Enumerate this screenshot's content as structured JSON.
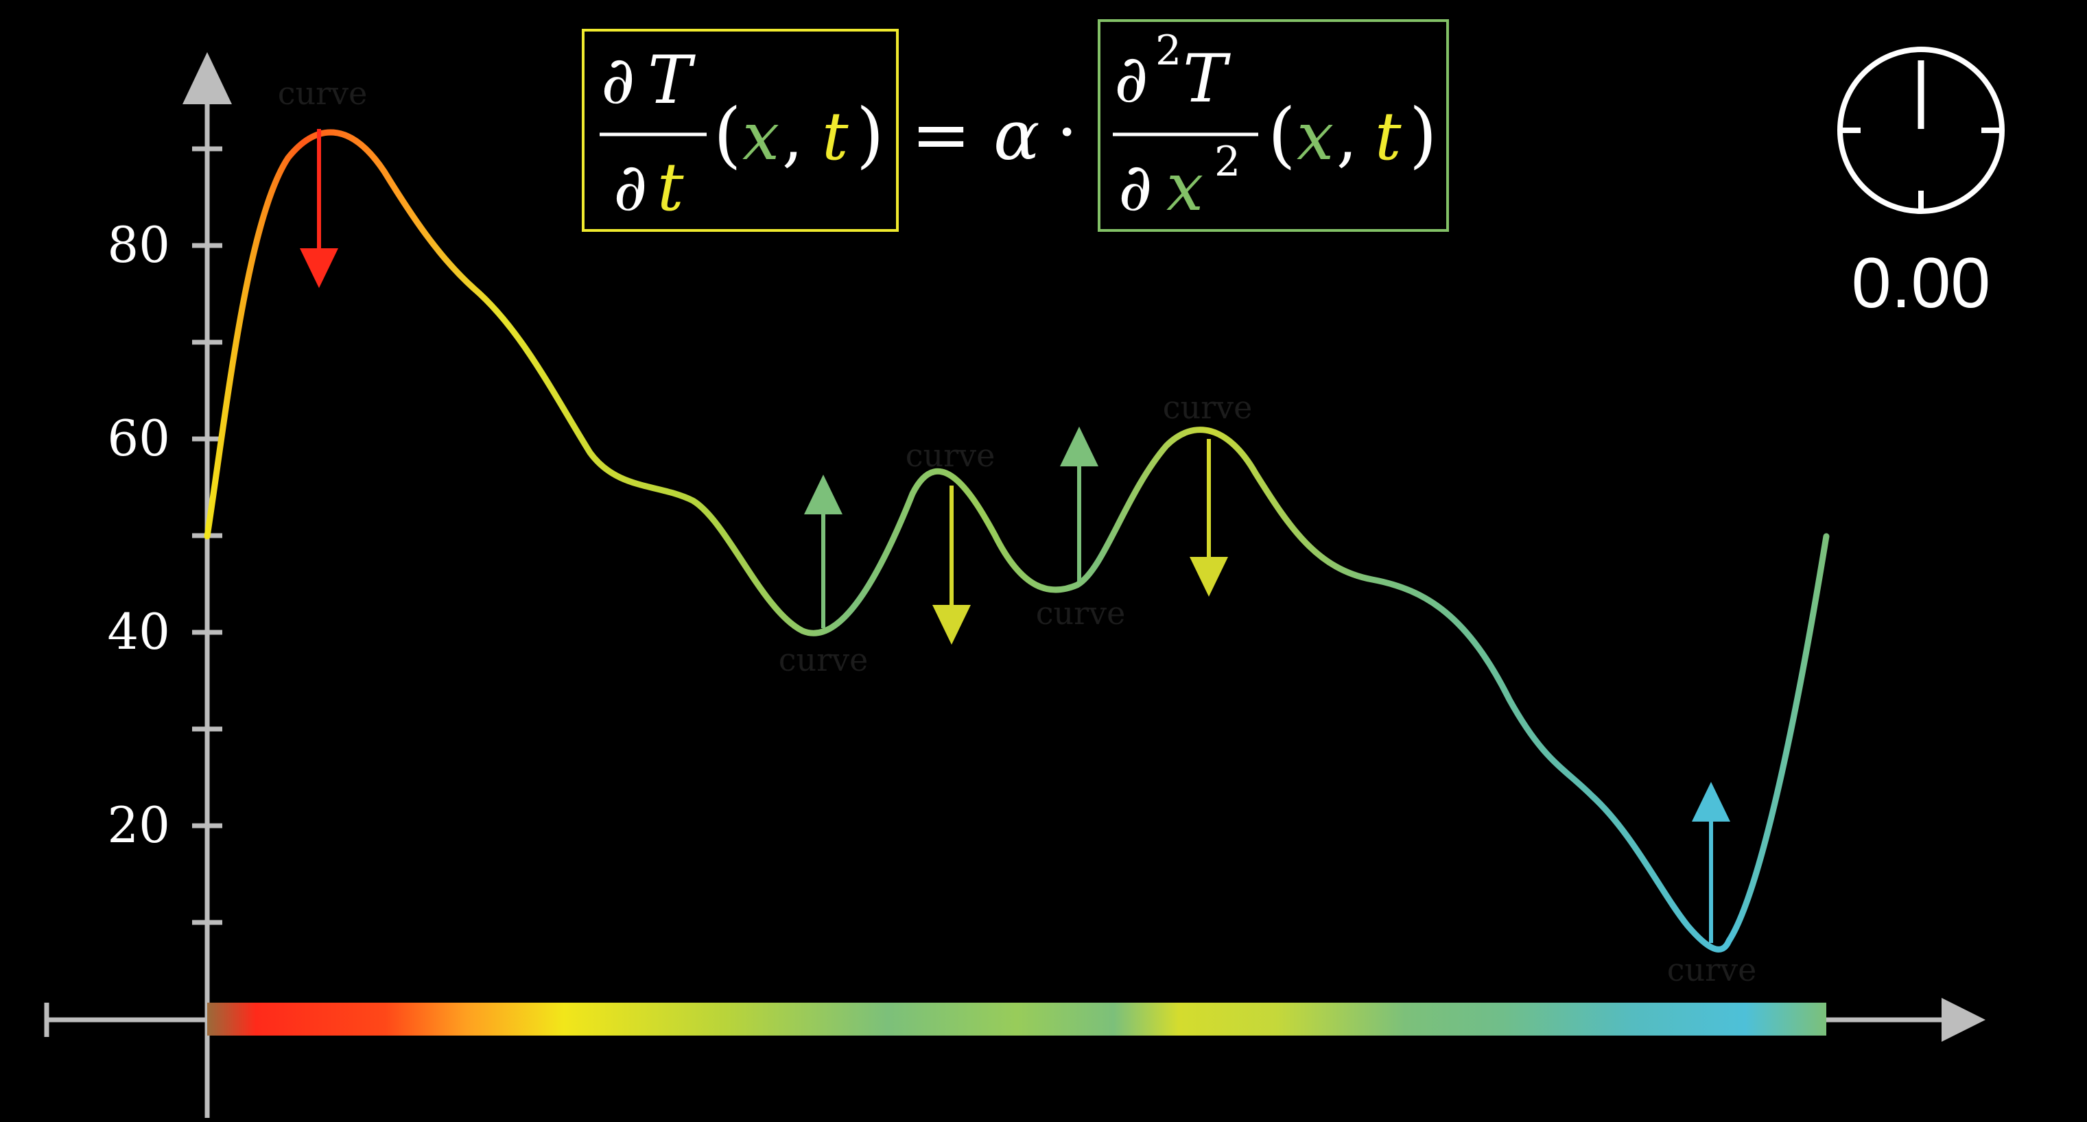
{
  "colors": {
    "background": "#000000",
    "axis": "#bdbdbd",
    "text": "#ffffff",
    "x_var": "#83c167",
    "t_var": "#f0ea2e",
    "lhs_box": "#f0ea2e",
    "rhs_box": "#83c167",
    "cool_arrow": "#e8e22a",
    "warm_arrow": "#7cc07a",
    "hot_arrow": "#ff2a1a",
    "cold_arrow": "#4ec0d8"
  },
  "y_axis": {
    "ticks": [
      "80",
      "60",
      "40",
      "20"
    ]
  },
  "equation": {
    "lhs_numerator_d": "∂",
    "lhs_numerator_T": "T",
    "lhs_denominator_d": "∂",
    "lhs_denominator_t": "t",
    "open_paren": "(",
    "x": "x",
    "comma": ",",
    "t": "t",
    "close_paren": ")",
    "equals": "=",
    "alpha": "α",
    "dot": "·",
    "rhs_numerator_d": "∂",
    "rhs_numerator_exp": "2",
    "rhs_numerator_T": "T",
    "rhs_denominator_d": "∂",
    "rhs_denominator_x": "x",
    "rhs_denominator_exp": "2"
  },
  "timer": {
    "value": "0.00",
    "icon": "stopwatch-icon"
  },
  "curve_labels": [
    "curve",
    "curve",
    "curve",
    "curve",
    "curve",
    "curve"
  ]
}
